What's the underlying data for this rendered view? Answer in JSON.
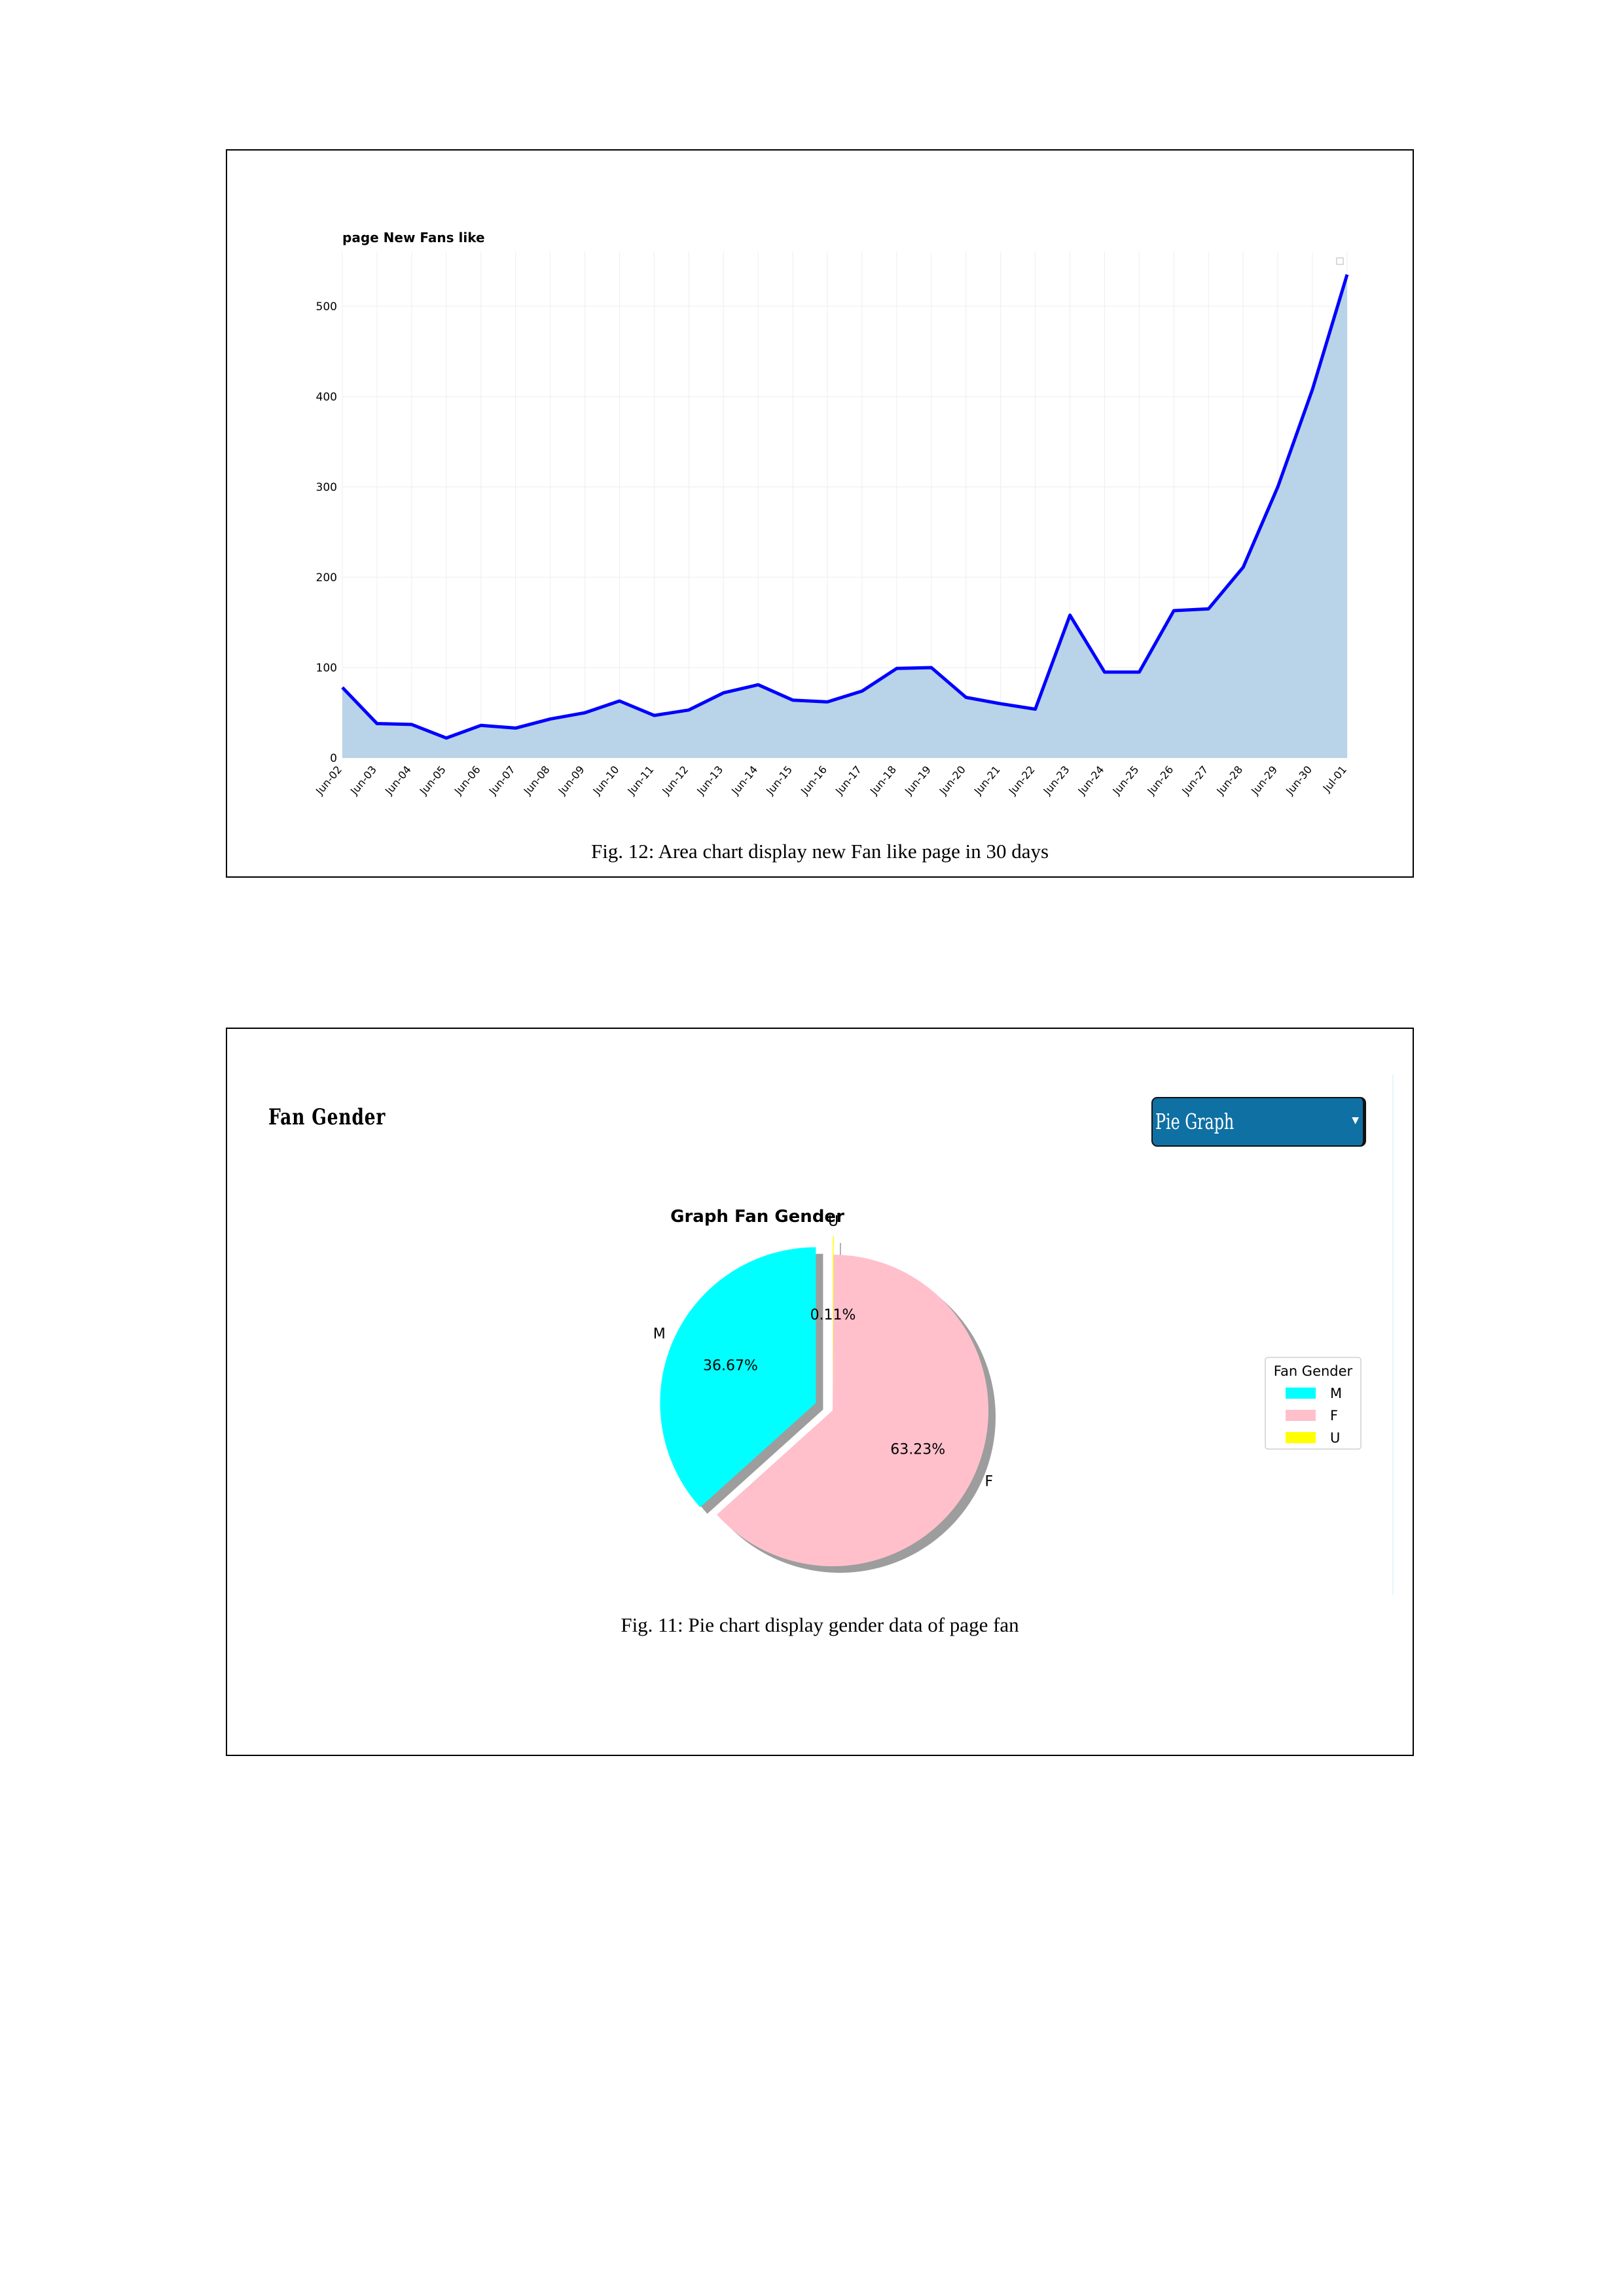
{
  "figure_12": {
    "caption": "Fig. 12: Area chart display new Fan like page in 30 days"
  },
  "figure_11": {
    "caption": "Fig. 11: Pie chart display gender data of page fan",
    "panel_title": "Fan Gender",
    "dropdown": {
      "selected": "Pie Graph",
      "caret_icon": "caret-down-icon"
    }
  },
  "chart_data": [
    {
      "type": "area",
      "title": "page New Fans like",
      "xlabel": "",
      "ylabel": "",
      "ylim": [
        0,
        560
      ],
      "yticks": [
        0,
        100,
        200,
        300,
        400,
        500
      ],
      "grid": true,
      "legend": "top-right",
      "line_color": "#0000ff",
      "fill_color": "#b9d3e8",
      "x": [
        "Jun-02",
        "Jun-03",
        "Jun-04",
        "Jun-05",
        "Jun-06",
        "Jun-07",
        "Jun-08",
        "Jun-09",
        "Jun-10",
        "Jun-11",
        "Jun-12",
        "Jun-13",
        "Jun-14",
        "Jun-15",
        "Jun-16",
        "Jun-17",
        "Jun-18",
        "Jun-19",
        "Jun-20",
        "Jun-21",
        "Jun-22",
        "Jun-23",
        "Jun-24",
        "Jun-25",
        "Jun-26",
        "Jun-27",
        "Jun-28",
        "Jun-29",
        "Jun-30",
        "Jul-01"
      ],
      "values": [
        78,
        38,
        37,
        22,
        36,
        33,
        43,
        50,
        63,
        47,
        53,
        72,
        81,
        64,
        62,
        74,
        99,
        100,
        67,
        60,
        54,
        158,
        95,
        95,
        163,
        165,
        211,
        300,
        408,
        535
      ]
    },
    {
      "type": "pie",
      "title": "Graph Fan Gender",
      "categories": [
        "M",
        "F",
        "U"
      ],
      "values": [
        36.67,
        63.23,
        0.11
      ],
      "labels": [
        "36.67%",
        "63.23%",
        "0.11%"
      ],
      "colors": [
        "#00ffff",
        "#ffc0cb",
        "#ffff00"
      ],
      "explode": [
        true,
        false,
        true
      ],
      "shadow": true,
      "legend_title": "Fan Gender",
      "legend": "right"
    }
  ]
}
